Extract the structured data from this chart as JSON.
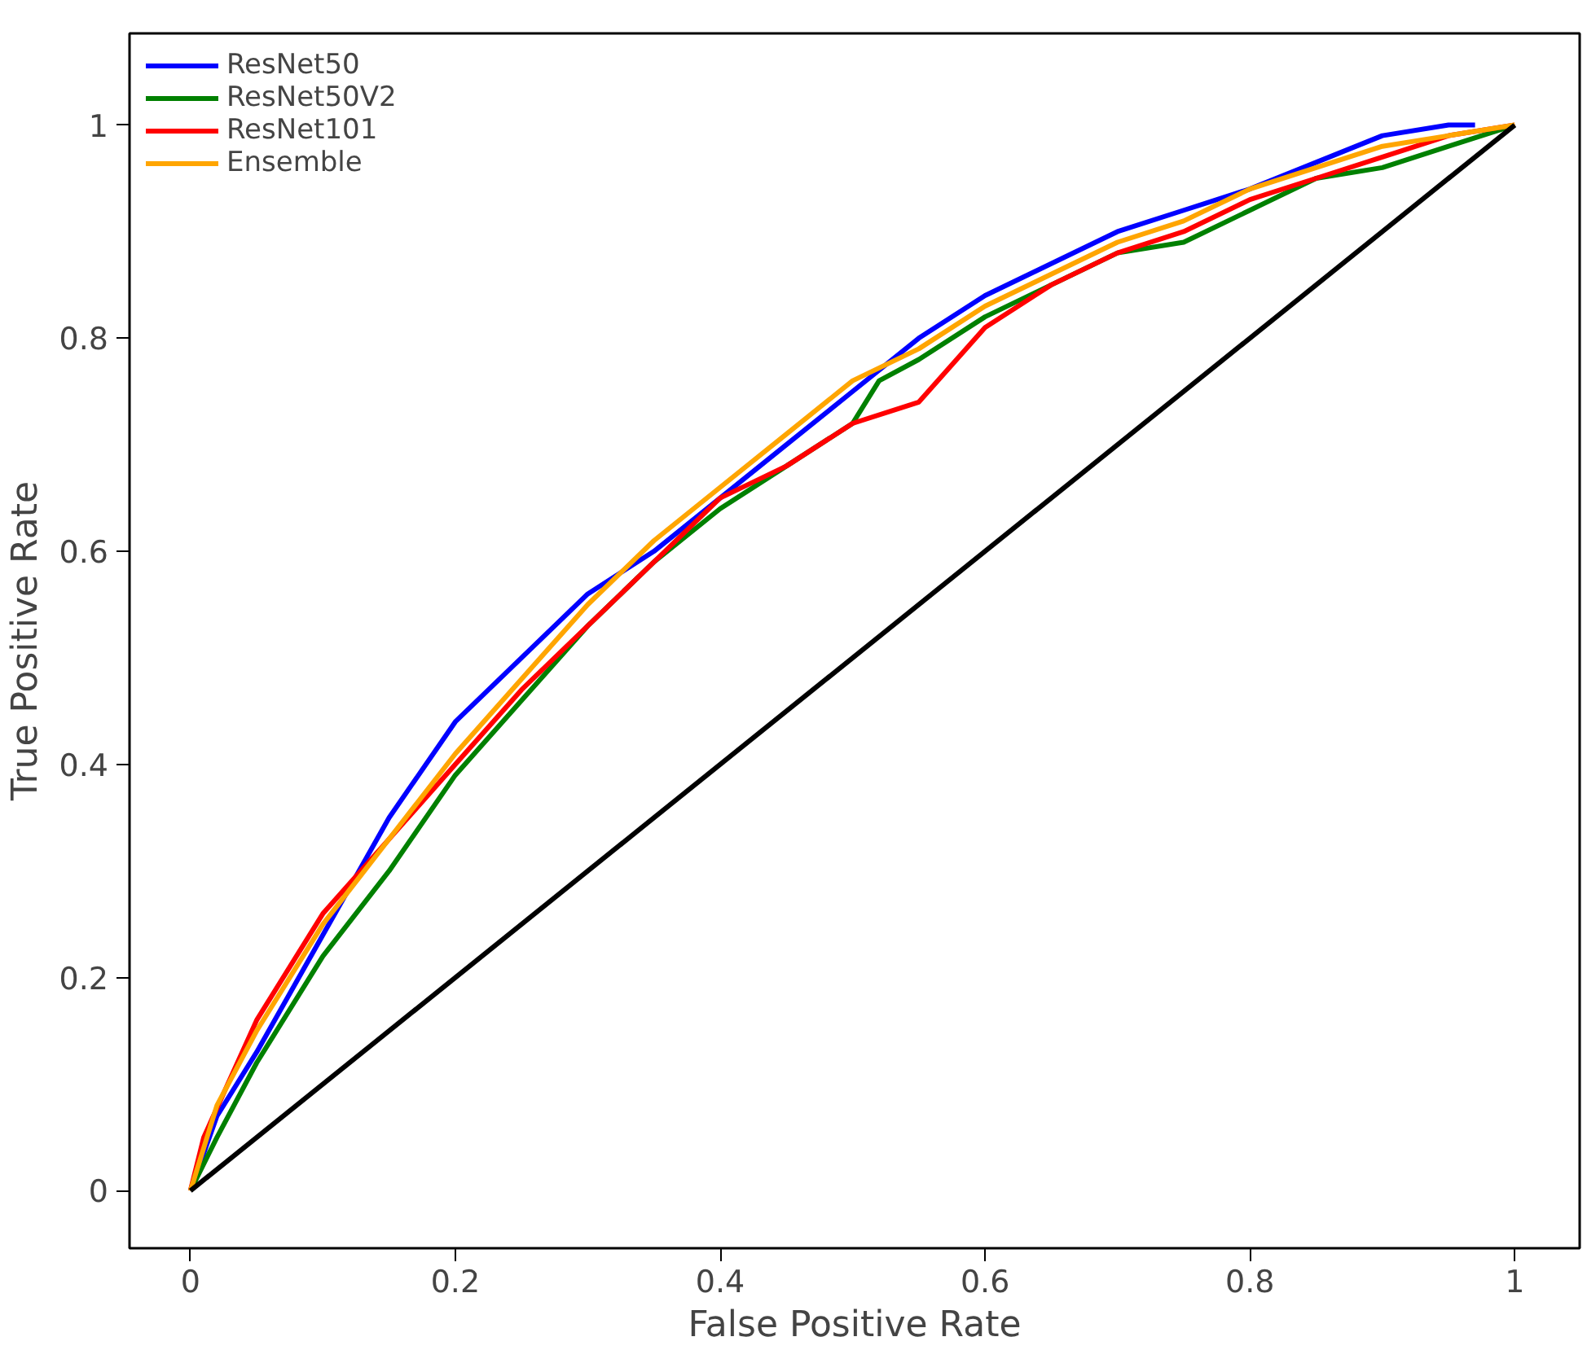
{
  "chart_data": {
    "type": "line",
    "xlabel": "False Positive Rate",
    "ylabel": "True Positive Rate",
    "xlim": [
      -0.046,
      1.049
    ],
    "ylim": [
      -0.054,
      1.086
    ],
    "xticks": [
      0,
      0.2,
      0.4,
      0.6,
      0.8,
      1
    ],
    "yticks": [
      0,
      0.2,
      0.4,
      0.6,
      0.8,
      1
    ],
    "grid": false,
    "legend": "top left",
    "marker": "none",
    "line_style": "solid",
    "series": [
      {
        "name": "ResNet50",
        "color": "#0000ff",
        "x": [
          0,
          0.02,
          0.05,
          0.1,
          0.15,
          0.2,
          0.25,
          0.3,
          0.35,
          0.4,
          0.45,
          0.5,
          0.55,
          0.6,
          0.65,
          0.7,
          0.75,
          0.8,
          0.85,
          0.9,
          0.95,
          0.97
        ],
        "values": [
          0,
          0.07,
          0.13,
          0.24,
          0.35,
          0.44,
          0.5,
          0.56,
          0.6,
          0.65,
          0.7,
          0.75,
          0.8,
          0.84,
          0.87,
          0.9,
          0.92,
          0.94,
          0.965,
          0.99,
          1.0,
          1.0
        ]
      },
      {
        "name": "ResNet50V2",
        "color": "#008000",
        "x": [
          0,
          0.02,
          0.05,
          0.1,
          0.15,
          0.2,
          0.25,
          0.3,
          0.35,
          0.4,
          0.45,
          0.5,
          0.52,
          0.55,
          0.6,
          0.65,
          0.7,
          0.75,
          0.8,
          0.85,
          0.9,
          0.95,
          1
        ],
        "values": [
          0,
          0.05,
          0.12,
          0.22,
          0.3,
          0.39,
          0.46,
          0.53,
          0.59,
          0.64,
          0.68,
          0.72,
          0.76,
          0.78,
          0.82,
          0.85,
          0.88,
          0.89,
          0.92,
          0.95,
          0.96,
          0.98,
          1
        ]
      },
      {
        "name": "ResNet101",
        "color": "#ff0000",
        "x": [
          0,
          0.01,
          0.05,
          0.1,
          0.15,
          0.2,
          0.25,
          0.3,
          0.35,
          0.4,
          0.45,
          0.5,
          0.55,
          0.6,
          0.65,
          0.7,
          0.75,
          0.8,
          0.85,
          0.9,
          0.95,
          1
        ],
        "values": [
          0,
          0.05,
          0.16,
          0.26,
          0.33,
          0.4,
          0.47,
          0.53,
          0.59,
          0.65,
          0.68,
          0.72,
          0.74,
          0.81,
          0.85,
          0.88,
          0.9,
          0.93,
          0.95,
          0.97,
          0.99,
          1
        ]
      },
      {
        "name": "Ensemble",
        "color": "#ffa500",
        "x": [
          0,
          0.02,
          0.05,
          0.1,
          0.15,
          0.2,
          0.25,
          0.3,
          0.35,
          0.4,
          0.45,
          0.5,
          0.55,
          0.6,
          0.65,
          0.7,
          0.75,
          0.8,
          0.85,
          0.9,
          0.95,
          1
        ],
        "values": [
          0,
          0.08,
          0.15,
          0.25,
          0.33,
          0.41,
          0.48,
          0.55,
          0.61,
          0.66,
          0.71,
          0.76,
          0.79,
          0.83,
          0.86,
          0.89,
          0.91,
          0.94,
          0.96,
          0.98,
          0.99,
          1
        ]
      },
      {
        "color": "#000000",
        "x": [
          0,
          1
        ],
        "values": [
          0,
          1
        ]
      }
    ]
  }
}
